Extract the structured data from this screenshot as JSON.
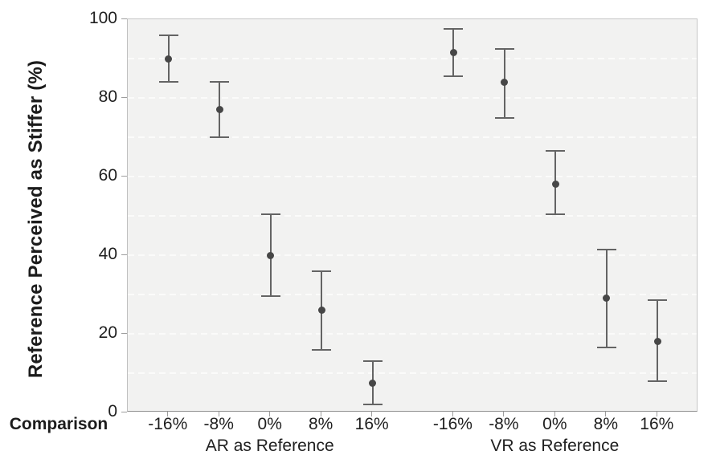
{
  "chart_data": {
    "type": "scatter",
    "subtype": "point-estimates-with-error-bars",
    "title": "",
    "ylabel": "Reference Perceived as Stiffer (%)",
    "xlabel_prefix": "Comparison",
    "ylim": [
      0,
      100
    ],
    "y_ticks": [
      0,
      20,
      40,
      60,
      80,
      100
    ],
    "y_gridline_values": [
      10,
      20,
      30,
      40,
      50,
      60,
      70,
      80,
      90
    ],
    "grid": "horizontal-dashed",
    "legend_position": "none",
    "groups": [
      {
        "label": "AR as Reference",
        "categories": [
          "-16%",
          "-8%",
          "0%",
          "8%",
          "16%"
        ],
        "means": [
          90,
          77,
          40,
          26,
          7.5
        ],
        "ci_low": [
          84,
          70,
          29.5,
          16,
          2
        ],
        "ci_high": [
          96,
          84,
          50.5,
          36,
          13
        ]
      },
      {
        "label": "VR as Reference",
        "categories": [
          "-16%",
          "-8%",
          "0%",
          "8%",
          "16%"
        ],
        "means": [
          91.5,
          84,
          58,
          29,
          18
        ],
        "ci_low": [
          85.5,
          75,
          50.5,
          16.5,
          8
        ],
        "ci_high": [
          97.5,
          92.5,
          66.5,
          41.5,
          28.5
        ]
      }
    ],
    "colors": {
      "point": "#474747",
      "error_bar": "#646464",
      "plot_background": "#f2f2f1",
      "gridline": "#fbfbfa",
      "axis_tick": "#9d9d9d",
      "text": "#1f1f1f"
    }
  }
}
